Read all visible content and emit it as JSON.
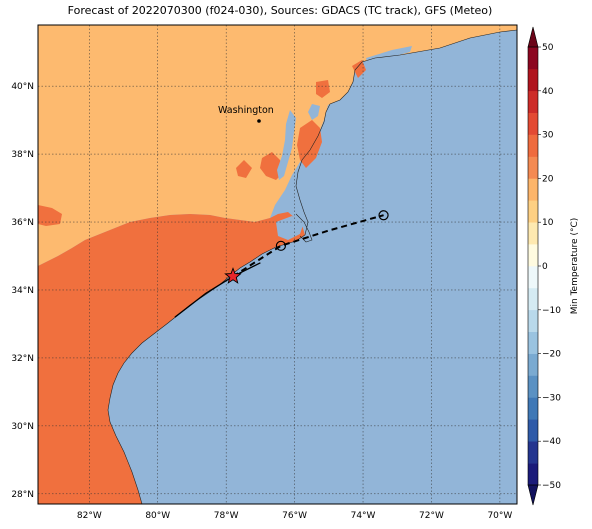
{
  "title": "Forecast of 2022070300 (f024-030), Sources: GDACS (TC track), GFS (Meteo)",
  "lon_ticks": [
    "82°W",
    "80°W",
    "78°W",
    "76°W",
    "74°W",
    "72°W",
    "70°W"
  ],
  "lat_ticks": [
    "40°N",
    "38°N",
    "36°N",
    "34°N",
    "32°N",
    "30°N",
    "28°N"
  ],
  "city_label": "Washington",
  "colorbar": {
    "label": "Min Temperature (°C)",
    "ticks": [
      "50",
      "40",
      "30",
      "20",
      "10",
      "0",
      "−10",
      "−20",
      "−30",
      "−40",
      "−50"
    ],
    "levels": [
      -50,
      -45,
      -40,
      -35,
      -30,
      -25,
      -20,
      -15,
      -10,
      -5,
      0,
      5,
      10,
      15,
      20,
      25,
      30,
      35,
      40,
      45,
      50
    ],
    "colors": [
      "#1b1b7a",
      "#24358f",
      "#2e5aa8",
      "#3f78b6",
      "#5a91c3",
      "#7aaad1",
      "#9ac3e0",
      "#b9d9eb",
      "#d5ebf3",
      "#eef8fa",
      "#fffbe0",
      "#fee9b0",
      "#fed083",
      "#fdb56a",
      "#f48a52",
      "#ef6b3e",
      "#e34a33",
      "#cd2c29",
      "#b0141e",
      "#8c0620"
    ]
  },
  "colors": {
    "ocean": "#92b5d8",
    "warm_land": "#f0703e",
    "mild_land": "#fdba6f",
    "track": "#000000",
    "storm_marker": "#e8262a"
  },
  "track": {
    "observed": [
      [
        -79.5,
        33.2
      ],
      [
        -78.6,
        33.9
      ],
      [
        -77.8,
        34.4
      ],
      [
        -77.0,
        34.8
      ]
    ],
    "forecast": [
      [
        -77.8,
        34.4
      ],
      [
        -76.4,
        35.3
      ],
      [
        -75.0,
        35.75
      ],
      [
        -73.4,
        36.2
      ]
    ],
    "current_position": [
      -77.8,
      34.4
    ],
    "forecast_points": [
      [
        -76.4,
        35.3
      ],
      [
        -73.4,
        36.2
      ]
    ]
  },
  "map_extent": {
    "lon": [
      -83.5,
      -69.5
    ],
    "lat": [
      27.7,
      41.8
    ]
  }
}
